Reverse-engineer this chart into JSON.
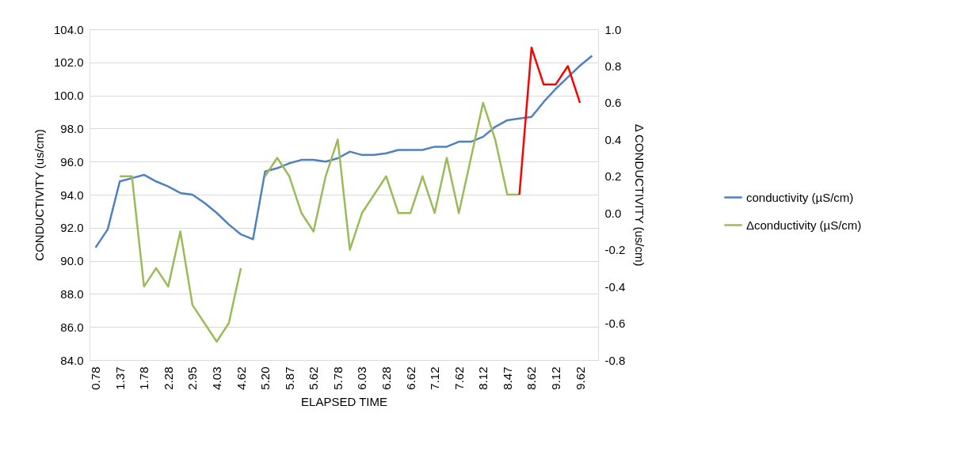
{
  "chart_data": {
    "type": "line",
    "xlabel": "ELAPSED TIME",
    "ylabel": "CONDUCTIVITY (us/cm)",
    "y2label": "Δ CONDUCTIVITY (us/cm)",
    "categories": [
      "0.78",
      null,
      "1.37",
      null,
      "1.78",
      null,
      "2.28",
      null,
      "2.95",
      null,
      "4.03",
      null,
      "4.62",
      null,
      "5.20",
      null,
      "5.87",
      null,
      "5.62",
      null,
      "5.78",
      null,
      "6.03",
      null,
      "6.28",
      null,
      "6.62",
      null,
      "7.12",
      null,
      "7.62",
      null,
      "8.12",
      null,
      "8.47",
      null,
      "8.62",
      null,
      "9.12",
      null,
      "9.62",
      null
    ],
    "series": [
      {
        "name": "conductivity (µS/cm)",
        "color": "#4f81bd",
        "values": [
          90.8,
          91.9,
          94.8,
          95.0,
          95.2,
          94.8,
          94.5,
          94.1,
          94.0,
          93.5,
          92.9,
          92.2,
          91.6,
          91.3,
          95.4,
          95.6,
          95.9,
          96.1,
          96.1,
          96.0,
          96.2,
          96.6,
          96.4,
          96.4,
          96.5,
          96.7,
          96.7,
          96.7,
          96.9,
          96.9,
          97.2,
          97.2,
          97.5,
          98.1,
          98.5,
          98.6,
          98.7,
          99.6,
          100.4,
          101.1,
          101.8,
          102.4
        ]
      },
      {
        "name": "Δconductivity (µS/cm)",
        "color": "#9bbb59",
        "axis": "y2",
        "values": [
          null,
          null,
          0.2,
          0.2,
          -0.4,
          -0.3,
          -0.4,
          -0.1,
          -0.5,
          -0.6,
          -0.7,
          -0.6,
          -0.3,
          null,
          0.2,
          0.3,
          0.2,
          0.0,
          -0.1,
          0.2,
          0.4,
          -0.2,
          0.0,
          0.1,
          0.2,
          0.0,
          0.0,
          0.2,
          0.0,
          0.3,
          0.0,
          0.3,
          0.6,
          0.4,
          0.1,
          0.1,
          null,
          null,
          null,
          null,
          null,
          null
        ]
      },
      {
        "color": "#ff0000",
        "axis": "y2",
        "values": [
          null,
          null,
          null,
          null,
          null,
          null,
          null,
          null,
          null,
          null,
          null,
          null,
          null,
          null,
          null,
          null,
          null,
          null,
          null,
          null,
          null,
          null,
          null,
          null,
          null,
          null,
          null,
          null,
          null,
          null,
          null,
          null,
          null,
          null,
          null,
          0.1,
          0.9,
          0.7,
          0.7,
          0.8,
          0.6,
          null
        ]
      }
    ],
    "ylim": [
      84,
      104
    ],
    "yticks": [
      {
        "value": 84,
        "label": "84.0"
      },
      {
        "value": 86,
        "label": "86.0"
      },
      {
        "value": 88,
        "label": "88.0"
      },
      {
        "value": 90,
        "label": "90.0"
      },
      {
        "value": 92,
        "label": "92.0"
      },
      {
        "value": 94,
        "label": "94.0"
      },
      {
        "value": 96,
        "label": "96.0"
      },
      {
        "value": 98,
        "label": "98.0"
      },
      {
        "value": 100,
        "label": "100.0"
      },
      {
        "value": 102,
        "label": "102.0"
      },
      {
        "value": 104,
        "label": "104.0"
      }
    ],
    "y2lim": [
      -0.8,
      1.0
    ],
    "y2ticks": [
      {
        "value": -0.8,
        "label": "-0.8"
      },
      {
        "value": -0.6,
        "label": "-0.6"
      },
      {
        "value": -0.4,
        "label": "-0.4"
      },
      {
        "value": -0.2,
        "label": "-0.2"
      },
      {
        "value": 0,
        "label": "0.0"
      },
      {
        "value": 0.2,
        "label": "0.2"
      },
      {
        "value": 0.4,
        "label": "0.4"
      },
      {
        "value": 0.6,
        "label": "0.6"
      },
      {
        "value": 0.8,
        "label": "0.8"
      },
      {
        "value": 1.0,
        "label": "1.0"
      }
    ],
    "grid": "y",
    "legend": "right",
    "marker": "none",
    "line_style": "solid"
  }
}
